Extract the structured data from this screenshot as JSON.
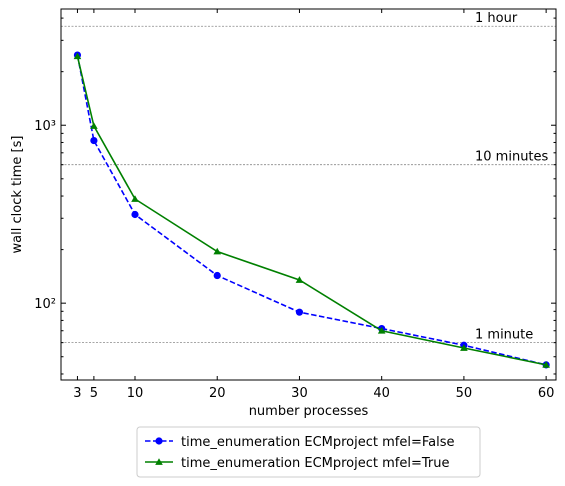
{
  "chart_data": {
    "type": "line",
    "xlabel": "number processes",
    "ylabel": "wall clock time [s]",
    "x_ticks": [
      3,
      5,
      10,
      20,
      30,
      40,
      50,
      60
    ],
    "x_tick_labels": [
      "3",
      "5",
      "10",
      "20",
      "30",
      "40",
      "50",
      "60"
    ],
    "xlim": [
      1,
      61.2
    ],
    "y_scale": "log",
    "ylim": [
      37,
      4500
    ],
    "y_ticks": [
      100,
      1000
    ],
    "y_tick_labels": [
      "10²",
      "10³"
    ],
    "reference_lines": [
      {
        "value": 3600,
        "label": "1 hour"
      },
      {
        "value": 600,
        "label": "10 minutes"
      },
      {
        "value": 60,
        "label": "1 minute"
      }
    ],
    "series": [
      {
        "name": "time_enumeration ECMproject mfel=False",
        "color": "#0000ff",
        "style": "dashed",
        "marker": "circle",
        "x": [
          3,
          5,
          10,
          20,
          30,
          40,
          50,
          60
        ],
        "y": [
          2480,
          820,
          315,
          143,
          89,
          72,
          58,
          45
        ]
      },
      {
        "name": "time_enumeration ECMproject mfel=True",
        "color": "#008000",
        "style": "solid",
        "marker": "triangle",
        "x": [
          3,
          5,
          10,
          20,
          30,
          40,
          50,
          60
        ],
        "y": [
          2440,
          990,
          385,
          195,
          135,
          70,
          56,
          45
        ]
      }
    ],
    "grid": false,
    "legend_position": "bottom-center-outside"
  }
}
